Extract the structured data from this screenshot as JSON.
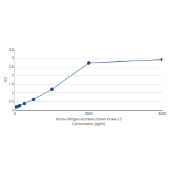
{
  "chart_data": {
    "type": "scatter",
    "xlabel": [
      "Mouse Mitogen-activated protein kinase 15",
      "Concentration (pg/ml)"
    ],
    "ylabel": "OD",
    "x": [
      0,
      78,
      156,
      312,
      625,
      1250,
      2500,
      5000
    ],
    "values": [
      0.17,
      0.2,
      0.26,
      0.38,
      0.62,
      1.2,
      2.72,
      2.92
    ],
    "color": "#1f4f8c",
    "marker": "circle",
    "line_style": "solid",
    "xlim": [
      0,
      5000
    ],
    "xticks": [
      0,
      2500,
      5000
    ],
    "ylim": [
      0,
      3.5
    ],
    "yticks": [
      0,
      0.5,
      1,
      1.5,
      2,
      2.5,
      3,
      3.5
    ],
    "grid": true
  }
}
